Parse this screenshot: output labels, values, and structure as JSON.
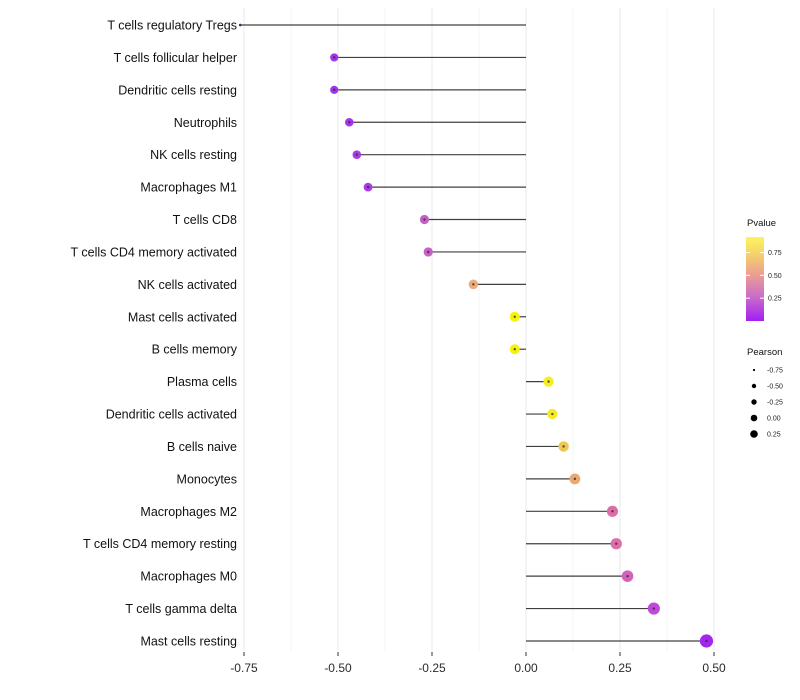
{
  "chart_data": {
    "type": "lollipop",
    "title": "",
    "xlabel": "",
    "ylabel": "",
    "grid": true,
    "x_ticks": [
      {
        "label": "-0.75",
        "value": -0.75
      },
      {
        "label": "-0.50",
        "value": -0.5
      },
      {
        "label": "-0.25",
        "value": -0.25
      },
      {
        "label": "0.00",
        "value": 0.0
      },
      {
        "label": "0.25",
        "value": 0.25
      },
      {
        "label": "0.50",
        "value": 0.5
      }
    ],
    "xlim": [
      -0.82,
      0.56
    ],
    "points": [
      {
        "label": "T cells regulatory  Tregs",
        "pearson": -0.76,
        "color": "#8B26E0",
        "size": 2.6
      },
      {
        "label": "T cells follicular helper",
        "pearson": -0.51,
        "color": "#A233EE",
        "size": 8.2
      },
      {
        "label": "Dendritic cells resting",
        "pearson": -0.51,
        "color": "#A233EE",
        "size": 8.2
      },
      {
        "label": "Neutrophils",
        "pearson": -0.47,
        "color": "#A535EC",
        "size": 8.6
      },
      {
        "label": "NK cells resting",
        "pearson": -0.45,
        "color": "#A83BE8",
        "size": 8.6
      },
      {
        "label": "Macrophages M1",
        "pearson": -0.42,
        "color": "#A93CE6",
        "size": 8.8
      },
      {
        "label": "T cells CD8",
        "pearson": -0.27,
        "color": "#C65EC6",
        "size": 9.2
      },
      {
        "label": "T cells CD4 memory activated",
        "pearson": -0.26,
        "color": "#C75FC5",
        "size": 9.2
      },
      {
        "label": "NK cells activated",
        "pearson": -0.14,
        "color": "#EDAC7C",
        "size": 9.6
      },
      {
        "label": "Mast cells activated",
        "pearson": -0.03,
        "color": "#F7F20D",
        "size": 10.0
      },
      {
        "label": "B cells memory",
        "pearson": -0.03,
        "color": "#F7F20D",
        "size": 10.0
      },
      {
        "label": "Plasma cells",
        "pearson": 0.06,
        "color": "#F6EE1E",
        "size": 10.3
      },
      {
        "label": "Dendritic cells activated",
        "pearson": 0.07,
        "color": "#F5E928",
        "size": 10.3
      },
      {
        "label": "B cells naive",
        "pearson": 0.1,
        "color": "#EFC853",
        "size": 10.5
      },
      {
        "label": "Monocytes",
        "pearson": 0.13,
        "color": "#ECA96F",
        "size": 10.8
      },
      {
        "label": "Macrophages M2",
        "pearson": 0.23,
        "color": "#DE6DA7",
        "size": 11.2
      },
      {
        "label": "T cells CD4 memory resting",
        "pearson": 0.24,
        "color": "#DD6EA9",
        "size": 11.3
      },
      {
        "label": "Macrophages M0",
        "pearson": 0.27,
        "color": "#D263BA",
        "size": 11.6
      },
      {
        "label": "T cells gamma delta",
        "pearson": 0.34,
        "color": "#C247DB",
        "size": 12.2
      },
      {
        "label": "Mast cells resting",
        "pearson": 0.48,
        "color": "#A126F0",
        "size": 13.2
      }
    ],
    "legends": {
      "pvalue": {
        "title": "Pvalue",
        "ticks": [
          {
            "label": "0.75",
            "value": 0.75
          },
          {
            "label": "0.50",
            "value": 0.5
          },
          {
            "label": "0.25",
            "value": 0.25
          }
        ],
        "range": [
          0,
          0.92
        ],
        "gradient": [
          {
            "offset": 0,
            "color": "#FBF55C"
          },
          {
            "offset": 0.2,
            "color": "#F6D26A"
          },
          {
            "offset": 0.45,
            "color": "#EC9E92"
          },
          {
            "offset": 0.72,
            "color": "#C96BCC"
          },
          {
            "offset": 1,
            "color": "#A21FF2"
          }
        ]
      },
      "pearson": {
        "title": "Pearson",
        "entries": [
          {
            "label": "-0.75",
            "size": 2.2
          },
          {
            "label": "-0.50",
            "size": 4.4
          },
          {
            "label": "-0.25",
            "size": 5.4
          },
          {
            "label": "0.00",
            "size": 6.6
          },
          {
            "label": "0.25",
            "size": 7.6
          }
        ]
      }
    },
    "colors": {
      "stem": "#404040",
      "stem_tip": "#2d2d2d",
      "grid_major": "#e8e8e8",
      "grid_minor": "#f4f4f4",
      "axis_tick": "#333333",
      "legend_dot": "#000000"
    }
  }
}
